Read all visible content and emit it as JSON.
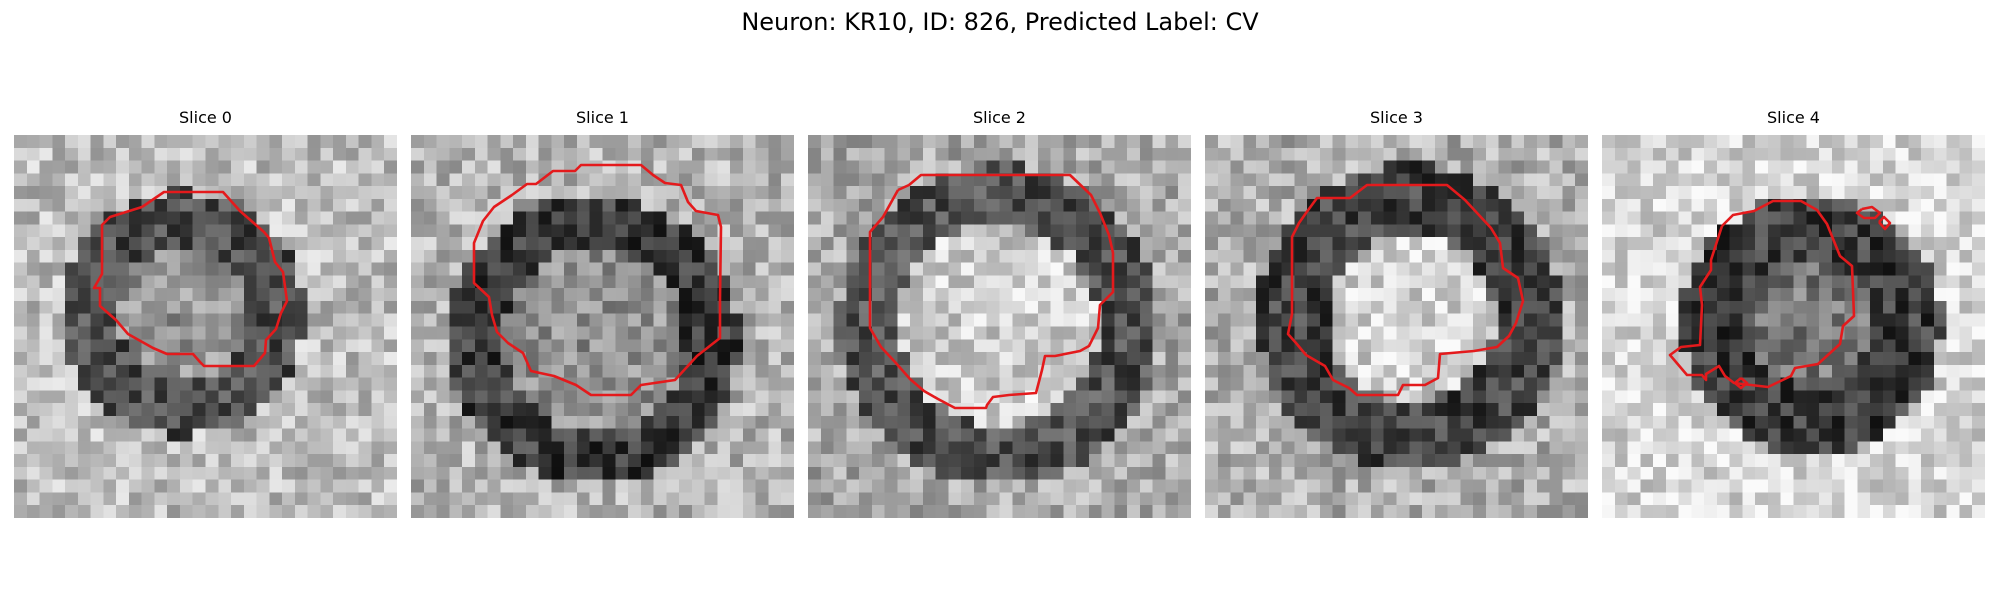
{
  "figure": {
    "title": "Neuron: KR10, ID: 826, Predicted Label: CV"
  },
  "panels": [
    {
      "title": "Slice 0",
      "contour_color": "#e41a1c"
    },
    {
      "title": "Slice 1",
      "contour_color": "#e41a1c"
    },
    {
      "title": "Slice 2",
      "contour_color": "#e41a1c"
    },
    {
      "title": "Slice 3",
      "contour_color": "#e41a1c"
    },
    {
      "title": "Slice 4",
      "contour_color": "#e41a1c"
    }
  ],
  "colors": {
    "contour": "#e41a1c",
    "background": "#ffffff"
  }
}
